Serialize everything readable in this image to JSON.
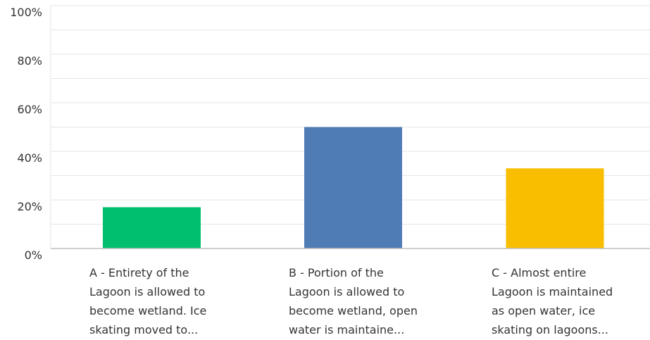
{
  "chart_data": {
    "type": "bar",
    "title": "",
    "xlabel": "",
    "ylabel": "",
    "ylim": [
      0,
      100
    ],
    "yticks": [
      "0%",
      "20%",
      "40%",
      "60%",
      "80%",
      "100%"
    ],
    "ytick_values": [
      0,
      20,
      40,
      60,
      80,
      100
    ],
    "minor_gridlines": true,
    "grid": true,
    "categories": [
      "A - Entirety of the\nLagoon is allowed to\nbecome wetland. Ice\nskating moved to...",
      "B - Portion of the\nLagoon is allowed to\nbecome wetland, open\nwater is maintaine...",
      "C - Almost entire\nLagoon is maintained\nas open water, ice\nskating on lagoons..."
    ],
    "values": [
      17,
      50,
      33
    ],
    "colors": [
      "#00bf6f",
      "#507cb6",
      "#f9be00"
    ]
  }
}
